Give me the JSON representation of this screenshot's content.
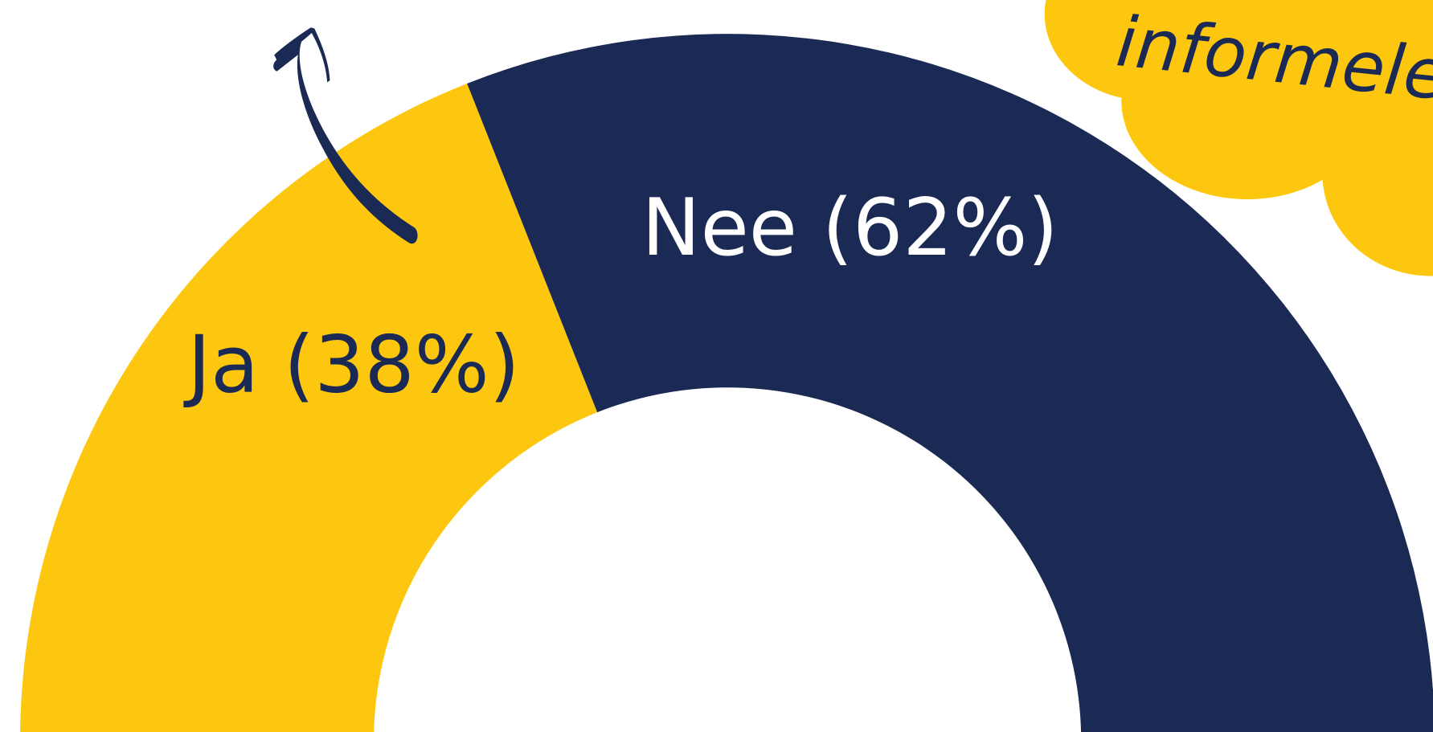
{
  "chart_data": {
    "type": "semi-donut",
    "categories": [
      "Ja",
      "Nee"
    ],
    "values": [
      38,
      62
    ],
    "value_labels": [
      "Ja (38%)",
      "Nee (62%)"
    ],
    "colors": [
      "#fcc70e",
      "#1b2a55"
    ],
    "label_colors": [
      "#1b2a55",
      "#ffffff"
    ]
  },
  "annotation": "informele"
}
